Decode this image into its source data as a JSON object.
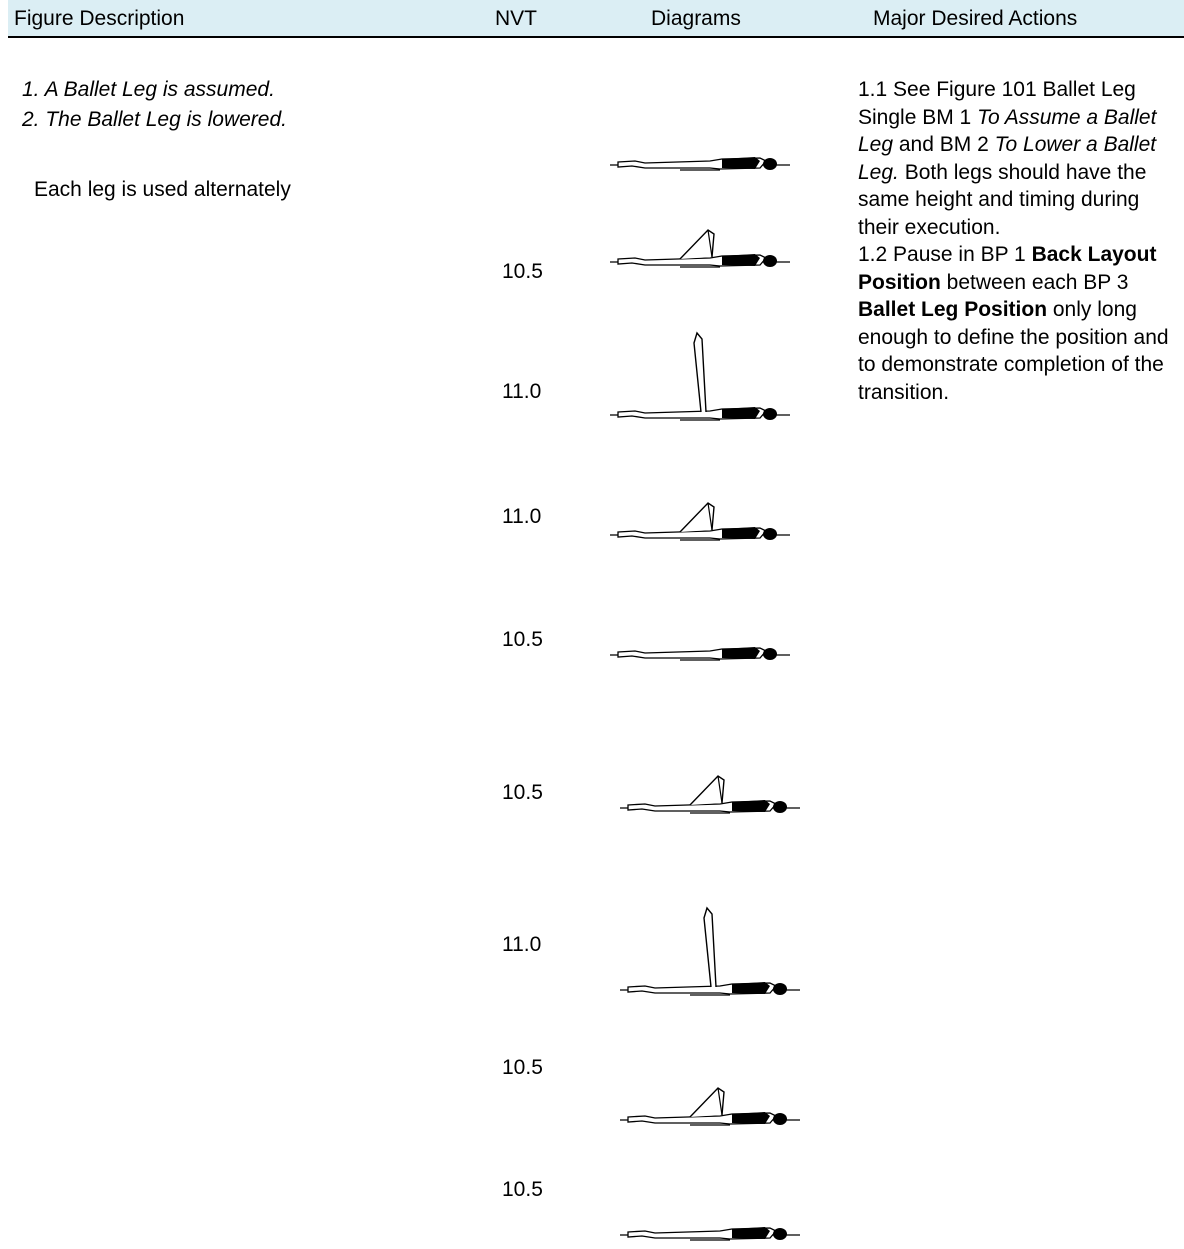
{
  "header": {
    "columns": [
      "Figure Description",
      "NVT",
      "Diagrams",
      "Major Desired Actions"
    ]
  },
  "description": {
    "steps": [
      "1. A Ballet Leg is assumed.",
      "2. The Ballet Leg is lowered."
    ],
    "note": "Each leg is used alternately"
  },
  "nvt": [
    "10.5",
    "11.0",
    "11.0",
    "10.5",
    "10.5",
    "11.0",
    "10.5",
    "10.5"
  ],
  "actions": [
    {
      "segments": [
        {
          "text": "1.1 See Figure 101 Ballet Leg Single BM 1 "
        },
        {
          "text": "To Assume a Ballet Leg",
          "style": "italic"
        },
        {
          "text": " and BM 2 "
        },
        {
          "text": "To Lower a Ballet Leg.",
          "style": "italic"
        },
        {
          "text": "  Both legs should have the same height and timing during their execution."
        }
      ]
    },
    {
      "segments": [
        {
          "text": "1.2 Pause in BP 1 "
        },
        {
          "text": "Back Layout Position",
          "style": "bold"
        },
        {
          "text": " between each BP 3 "
        },
        {
          "text": "Ballet Leg Position",
          "style": "bold"
        },
        {
          "text": " only long enough to define the position and to demonstrate completion of the transition."
        }
      ]
    }
  ]
}
